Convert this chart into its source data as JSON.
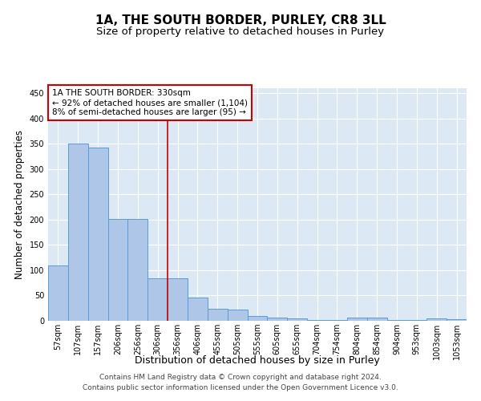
{
  "title": "1A, THE SOUTH BORDER, PURLEY, CR8 3LL",
  "subtitle": "Size of property relative to detached houses in Purley",
  "xlabel": "Distribution of detached houses by size in Purley",
  "ylabel": "Number of detached properties",
  "bar_values": [
    110,
    350,
    343,
    202,
    202,
    84,
    84,
    46,
    24,
    22,
    10,
    7,
    5,
    2,
    2,
    7,
    7,
    2,
    2,
    4,
    3
  ],
  "categories": [
    "57sqm",
    "107sqm",
    "157sqm",
    "206sqm",
    "256sqm",
    "306sqm",
    "356sqm",
    "406sqm",
    "455sqm",
    "505sqm",
    "555sqm",
    "605sqm",
    "655sqm",
    "704sqm",
    "754sqm",
    "804sqm",
    "854sqm",
    "904sqm",
    "953sqm",
    "1003sqm",
    "1053sqm"
  ],
  "bar_color": "#aec6e8",
  "bar_edge_color": "#5b9bd5",
  "vertical_line_x": 5.5,
  "vertical_line_color": "#cc0000",
  "annotation_text": "1A THE SOUTH BORDER: 330sqm\n← 92% of detached houses are smaller (1,104)\n8% of semi-detached houses are larger (95) →",
  "annotation_box_color": "#ffffff",
  "annotation_box_edge_color": "#cc0000",
  "ylim": [
    0,
    460
  ],
  "yticks": [
    0,
    50,
    100,
    150,
    200,
    250,
    300,
    350,
    400,
    450
  ],
  "background_color": "#dce9f5",
  "grid_color": "#ffffff",
  "footer_text": "Contains HM Land Registry data © Crown copyright and database right 2024.\nContains public sector information licensed under the Open Government Licence v3.0.",
  "title_fontsize": 11,
  "subtitle_fontsize": 9.5,
  "xlabel_fontsize": 9,
  "ylabel_fontsize": 8.5,
  "tick_fontsize": 7,
  "annotation_fontsize": 7.5,
  "footer_fontsize": 6.5
}
